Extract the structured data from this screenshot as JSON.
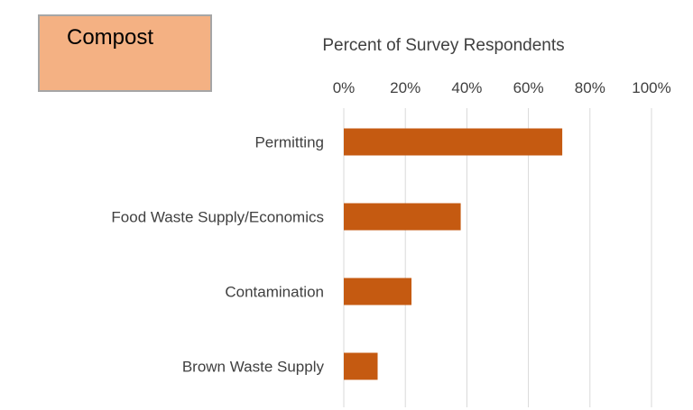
{
  "badge": {
    "label": "Compost"
  },
  "colors": {
    "bar": "#c55a11",
    "badge_fill": "#f4b183",
    "gridline": "#d9d9d9"
  },
  "chart_data": {
    "type": "bar",
    "orientation": "horizontal",
    "title": "",
    "xlabel": "Percent of Survey Respondents",
    "ylabel": "",
    "xlim": [
      0,
      100
    ],
    "x_ticks": [
      "0%",
      "20%",
      "40%",
      "60%",
      "80%",
      "100%"
    ],
    "x_axis_position": "top",
    "grid": true,
    "legend": "none",
    "categories": [
      "Permitting",
      "Food Waste Supply/Economics",
      "Contamination",
      "Brown Waste Supply"
    ],
    "values": [
      71,
      38,
      22,
      11
    ],
    "unit": "%"
  }
}
